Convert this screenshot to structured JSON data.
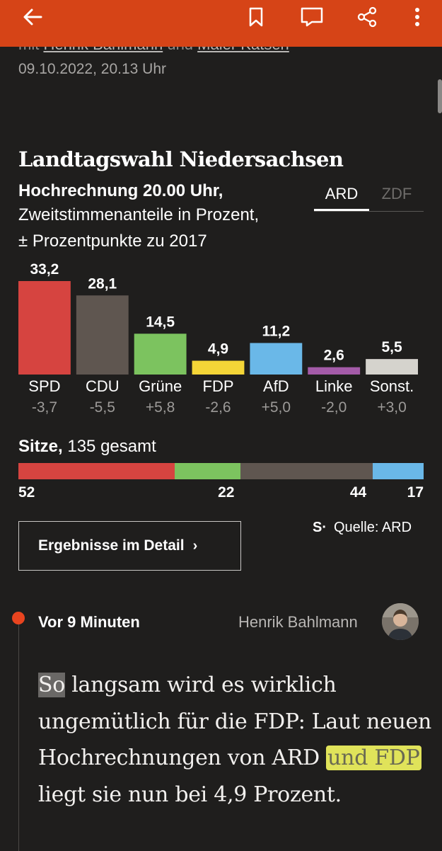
{
  "toolbar": {
    "back_icon": "arrow-left-icon",
    "bookmark_icon": "bookmark-icon",
    "comment_icon": "comment-icon",
    "share_icon": "share-icon",
    "more_icon": "more-vertical-icon",
    "color": "#d64417"
  },
  "meta": {
    "byline_prefix": "mit",
    "author_a": "Henrik Bahlmann",
    "byline_join": "und",
    "author_b": "Maler Katsen",
    "date": "09.10.2022, 20.13 Uhr"
  },
  "election": {
    "title": "Landtagswahl Niedersachsen",
    "subtitle_bold": "Hochrechnung 20.00 Uhr,",
    "subtitle_line2": "Zweitstimmenanteile in Prozent,",
    "subtitle_line3": "± Prozentpunkte zu 2017",
    "tabs": [
      "ARD",
      "ZDF"
    ],
    "active_tab": "ARD"
  },
  "chart_data": {
    "type": "bar",
    "title": "Landtagswahl Niedersachsen",
    "categories": [
      "SPD",
      "CDU",
      "Grüne",
      "FDP",
      "AfD",
      "Linke",
      "Sonst."
    ],
    "values": [
      33.2,
      28.1,
      14.5,
      4.9,
      11.2,
      2.6,
      5.5
    ],
    "value_labels": [
      "33,2",
      "28,1",
      "14,5",
      "4,9",
      "11,2",
      "2,6",
      "5,5"
    ],
    "changes": [
      "-3,7",
      "-5,5",
      "+5,8",
      "-2,6",
      "+5,0",
      "-2,0",
      "+3,0"
    ],
    "colors": [
      "#d64440",
      "#5f5650",
      "#7cc35f",
      "#f4d537",
      "#6ab8e8",
      "#a45ba8",
      "#d5d3cd"
    ],
    "ylim": [
      0,
      35
    ]
  },
  "seats": {
    "label_bold": "Sitze,",
    "label_rest": "135 gesamt",
    "total": 135,
    "segments": [
      {
        "party": "SPD",
        "seats": 52,
        "color": "#d64440"
      },
      {
        "party": "Grüne",
        "seats": 22,
        "color": "#7cc35f"
      },
      {
        "party": "CDU",
        "seats": 44,
        "color": "#5f5650"
      },
      {
        "party": "AfD",
        "seats": 17,
        "color": "#6ab8e8"
      }
    ],
    "labels": [
      "52",
      "22",
      "44",
      "17"
    ]
  },
  "detail_button": {
    "label": "Ergebnisse im Detail",
    "chevron": "›"
  },
  "source": {
    "logo": "S·",
    "text": "Quelle: ARD"
  },
  "live": {
    "time": "Vor 9 Minuten",
    "author": "Henrik Bahlmann",
    "text_so": "So",
    "text_1": " langsam wird es wirklich ungemütlich für die FDP: Laut neuen Hochrechnungen von ARD ",
    "text_hl": "und FDP",
    "text_2": " liegt sie nun bei 4,9 Prozent."
  }
}
